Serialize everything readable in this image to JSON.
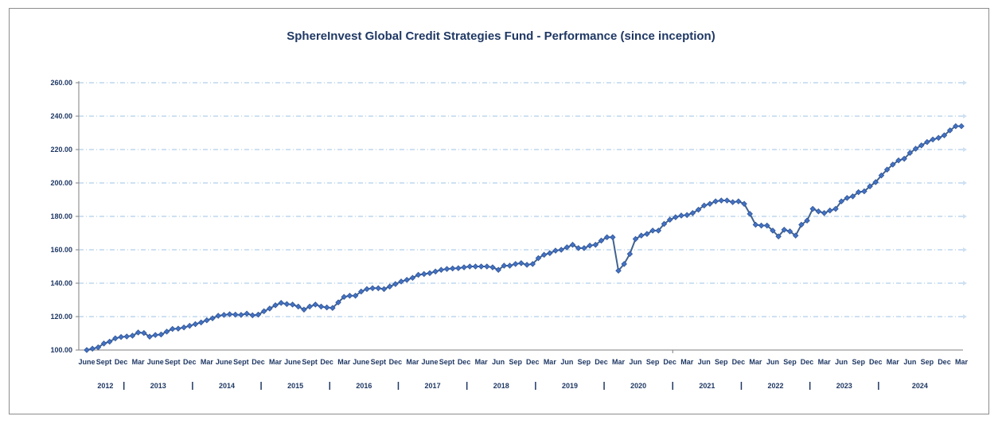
{
  "chart_data": {
    "type": "line",
    "title": "SphereInvest Global Credit Strategies Fund - Performance (since inception)",
    "xlabel": "",
    "ylabel": "",
    "ylim": [
      100,
      260
    ],
    "y_ticks": [
      "100.00",
      "120.00",
      "140.00",
      "160.00",
      "180.00",
      "200.00",
      "220.00",
      "240.00",
      "260.00"
    ],
    "x_tick_labels": [
      {
        "i": 0,
        "label": "June"
      },
      {
        "i": 3,
        "label": "Sept"
      },
      {
        "i": 6,
        "label": "Dec"
      },
      {
        "i": 9,
        "label": "Mar"
      },
      {
        "i": 12,
        "label": "June"
      },
      {
        "i": 15,
        "label": "Sept"
      },
      {
        "i": 18,
        "label": "Dec"
      },
      {
        "i": 21,
        "label": "Mar"
      },
      {
        "i": 24,
        "label": "June"
      },
      {
        "i": 27,
        "label": "Sept"
      },
      {
        "i": 30,
        "label": "Dec"
      },
      {
        "i": 33,
        "label": "Mar"
      },
      {
        "i": 36,
        "label": "June"
      },
      {
        "i": 39,
        "label": "Sept"
      },
      {
        "i": 42,
        "label": "Dec"
      },
      {
        "i": 45,
        "label": "Mar"
      },
      {
        "i": 48,
        "label": "June"
      },
      {
        "i": 51,
        "label": "Sept"
      },
      {
        "i": 54,
        "label": "Dec"
      },
      {
        "i": 57,
        "label": "Mar"
      },
      {
        "i": 60,
        "label": "June"
      },
      {
        "i": 63,
        "label": "Sept"
      },
      {
        "i": 66,
        "label": "Dec"
      },
      {
        "i": 69,
        "label": "Mar"
      },
      {
        "i": 72,
        "label": "Jun"
      },
      {
        "i": 75,
        "label": "Sep"
      },
      {
        "i": 78,
        "label": "Dec"
      },
      {
        "i": 81,
        "label": "Mar"
      },
      {
        "i": 84,
        "label": "Jun"
      },
      {
        "i": 87,
        "label": "Sep"
      },
      {
        "i": 90,
        "label": "Dec"
      },
      {
        "i": 93,
        "label": "Mar"
      },
      {
        "i": 96,
        "label": "Jun"
      },
      {
        "i": 99,
        "label": "Sep"
      },
      {
        "i": 102,
        "label": "Dec"
      },
      {
        "i": 105,
        "label": "Mar"
      },
      {
        "i": 108,
        "label": "Jun"
      },
      {
        "i": 111,
        "label": "Sep"
      },
      {
        "i": 114,
        "label": "Dec"
      },
      {
        "i": 117,
        "label": "Mar"
      },
      {
        "i": 120,
        "label": "Jun"
      },
      {
        "i": 123,
        "label": "Sep"
      },
      {
        "i": 126,
        "label": "Dec"
      },
      {
        "i": 129,
        "label": "Mar"
      },
      {
        "i": 132,
        "label": "Jun"
      },
      {
        "i": 135,
        "label": "Sep"
      },
      {
        "i": 138,
        "label": "Dec"
      },
      {
        "i": 141,
        "label": "Mar"
      },
      {
        "i": 144,
        "label": "Jun"
      },
      {
        "i": 147,
        "label": "Sep"
      },
      {
        "i": 150,
        "label": "Dec"
      },
      {
        "i": 153,
        "label": "Mar"
      }
    ],
    "years": [
      {
        "label": "2012",
        "start": 0,
        "end": 6.5
      },
      {
        "label": "2013",
        "start": 6.5,
        "end": 18.5
      },
      {
        "label": "2014",
        "start": 18.5,
        "end": 30.5
      },
      {
        "label": "2015",
        "start": 30.5,
        "end": 42.5
      },
      {
        "label": "2016",
        "start": 42.5,
        "end": 54.5
      },
      {
        "label": "2017",
        "start": 54.5,
        "end": 66.5
      },
      {
        "label": "2018",
        "start": 66.5,
        "end": 78.5
      },
      {
        "label": "2019",
        "start": 78.5,
        "end": 90.5
      },
      {
        "label": "2020",
        "start": 90.5,
        "end": 102.5
      },
      {
        "label": "2021",
        "start": 102.5,
        "end": 114.5
      },
      {
        "label": "2022",
        "start": 114.5,
        "end": 126.5
      },
      {
        "label": "2023",
        "start": 126.5,
        "end": 138.5
      },
      {
        "label": "2024",
        "start": 138.5,
        "end": 153
      }
    ],
    "grid": true,
    "series": [
      {
        "values": [
          100.0,
          100.8,
          101.6,
          103.9,
          105.0,
          107.0,
          107.8,
          108.1,
          108.6,
          110.5,
          110.2,
          108.0,
          109.0,
          109.3,
          111.0,
          112.6,
          112.8,
          113.5,
          114.5,
          115.5,
          116.5,
          117.8,
          119.0,
          120.5,
          121.0,
          121.4,
          121.2,
          121.0,
          121.8,
          120.8,
          121.2,
          123.2,
          124.8,
          126.8,
          128.2,
          127.5,
          127.2,
          126.0,
          124.2,
          126.0,
          127.2,
          126.0,
          125.5,
          125.2,
          128.5,
          131.8,
          132.5,
          132.5,
          135.0,
          136.5,
          137.0,
          137.0,
          136.5,
          138.0,
          139.5,
          141.0,
          142.0,
          143.2,
          145.0,
          145.5,
          146.0,
          147.0,
          148.0,
          148.5,
          148.8,
          149.0,
          149.5,
          150.0,
          150.0,
          150.0,
          150.0,
          149.5,
          148.0,
          150.5,
          150.5,
          151.5,
          152.0,
          151.0,
          151.5,
          155.0,
          157.0,
          158.0,
          159.5,
          160.0,
          161.5,
          163.0,
          161.0,
          161.0,
          162.5,
          163.0,
          165.5,
          167.5,
          167.5,
          147.5,
          151.5,
          157.5,
          166.5,
          168.5,
          169.5,
          171.5,
          171.5,
          175.5,
          178.0,
          179.5,
          180.5,
          180.8,
          182.0,
          184.0,
          186.5,
          187.5,
          189.0,
          189.5,
          189.5,
          188.5,
          189.0,
          187.5,
          181.5,
          175.0,
          174.5,
          174.5,
          171.5,
          168.0,
          172.0,
          171.0,
          168.5,
          175.0,
          177.5,
          184.5,
          183.0,
          182.0,
          183.5,
          184.5,
          189.0,
          191.0,
          192.0,
          194.5,
          195.0,
          198.0,
          200.5,
          204.5,
          208.0,
          211.0,
          213.5,
          214.5,
          218.0,
          220.5,
          222.5,
          224.5,
          226.0,
          227.0,
          228.5,
          231.5,
          234.0,
          234.0
        ]
      }
    ]
  },
  "colors": {
    "title": "#1f3864",
    "axis_text": "#1f3864",
    "line": "#41628f",
    "marker": "#4472c4",
    "marker_edge": "#2f5597",
    "grid": "#9dc3e6",
    "axis": "#7f7f7f"
  }
}
